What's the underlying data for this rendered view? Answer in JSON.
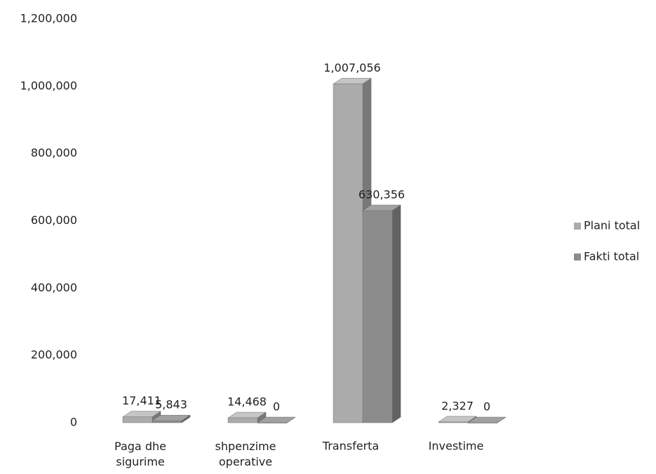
{
  "chart_data": {
    "type": "bar3d",
    "categories": [
      "Paga dhe sigurime",
      "shpenzime operative",
      "Transferta",
      "Investime"
    ],
    "series": [
      {
        "name": "Plani total",
        "color": "#ababab",
        "values": [
          17411,
          14468,
          1007056,
          2327
        ],
        "value_labels": [
          "17,411",
          "14,468",
          "1,007,056",
          "2,327"
        ]
      },
      {
        "name": "Fakti total",
        "color": "#8c8c8c",
        "values": [
          5843,
          0,
          630356,
          0
        ],
        "value_labels": [
          "5,843",
          "0",
          "630,356",
          "0"
        ]
      }
    ],
    "ylim": [
      0,
      1200000
    ],
    "yticks": [
      0,
      {
        "value": 200000,
        "label": "200,000"
      },
      {
        "value": 400000,
        "label": "400,000"
      },
      {
        "value": 600000,
        "label": "600,000"
      },
      {
        "value": 800000,
        "label": "800,000"
      },
      {
        "value": 1000000,
        "label": "1,000,000"
      },
      {
        "value": 1200000,
        "label": "1,200,000"
      }
    ],
    "legend": "right"
  }
}
